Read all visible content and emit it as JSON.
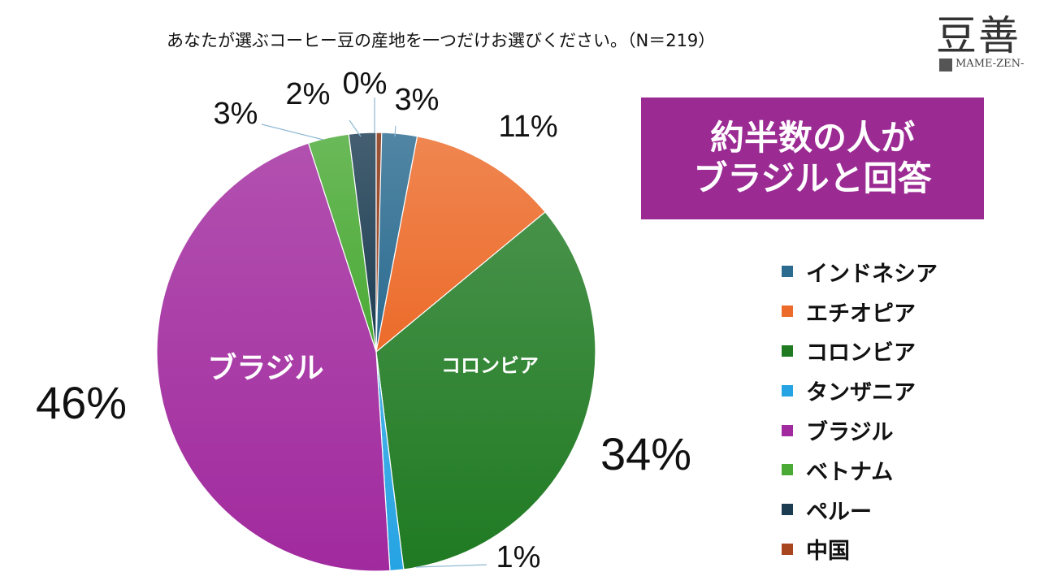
{
  "title": "あなたが選ぶコーヒー豆の産地を一つだけお選びください。（N＝219）",
  "logo": {
    "kanji": "豆善",
    "text": "MAME-ZEN-"
  },
  "callout": {
    "line1": "約半数の人が",
    "line2": "ブラジルと回答"
  },
  "chart_data": {
    "type": "pie",
    "title": "",
    "categories": [
      "インドネシア",
      "エチオピア",
      "コロンビア",
      "タンザニア",
      "ブラジル",
      "ベトナム",
      "ペルー",
      "中国"
    ],
    "values": [
      3,
      11,
      34,
      1,
      46,
      3,
      2,
      0
    ],
    "labels": [
      "3%",
      "11%",
      "34%",
      "1%",
      "46%",
      "3%",
      "2%",
      "0%"
    ],
    "inner_labels": {
      "コロンビア": "コロンビア",
      "ブラジル": "ブラジル"
    },
    "colors": [
      "#2b6b90",
      "#ec6b2a",
      "#1f7a22",
      "#25a3e3",
      "#a12a9e",
      "#4aaa35",
      "#1c3c52",
      "#a8471f"
    ],
    "legend_position": "right"
  }
}
